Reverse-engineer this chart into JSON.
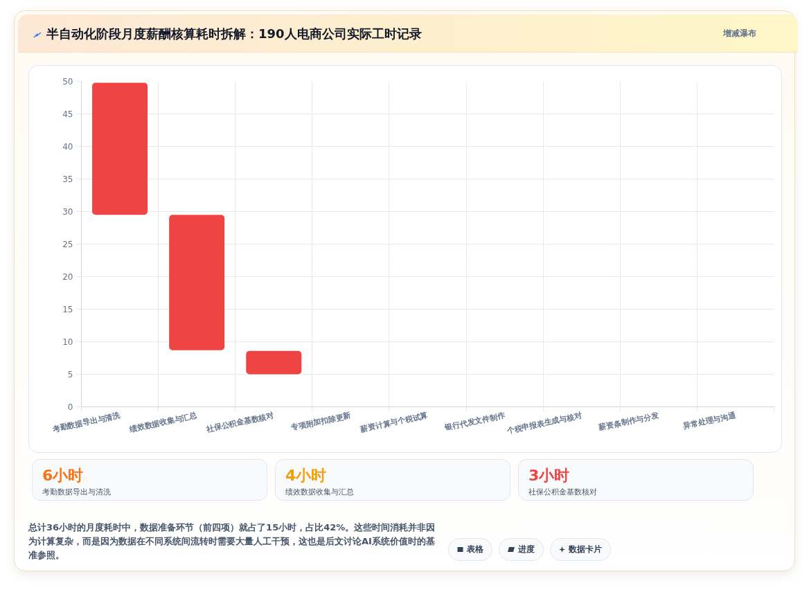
{
  "chart_data": [
    {
      "type": "bar",
      "title": "半自动化阶段月度薪酬核算耗时拆解：190人电商公司实际工时记录",
      "subtitle": "增减瀑布",
      "categories": [
        "考勤数据导出与清洗",
        "绩效数据收集与汇总",
        "社保公积金基数核对",
        "专项附加扣除更新",
        "薪资计算与个税试算",
        "银行代发文件制作",
        "个税申报表生成与核对",
        "薪资条制作与分发",
        "异常处理与沟通"
      ],
      "values": [
        20.3,
        20.8,
        3.6,
        null,
        null,
        null,
        null,
        null,
        null
      ],
      "base": [
        29.5,
        8.7,
        5.0,
        null,
        null,
        null,
        null,
        null,
        null
      ],
      "color": "#ef4444",
      "ylim": [
        0,
        50
      ],
      "yticks": [
        0,
        5,
        10,
        15,
        20,
        25,
        30,
        35,
        40,
        45,
        50
      ],
      "grid": true,
      "annotations": [
        "总计36小时的月度耗时中，数据准备环节（前四项）就占了15小时，占比42%。这些时间消耗并非因为计算复杂，而是因为数据在不同系统间流转时需要大量人工干预，这也是后文讨论AI系统价值时的基准参照。",
        "表格",
        "进度",
        "数据卡片"
      ]
    },
    {
      "type": "other",
      "annotations": [
        "6小时",
        "考勤数据导出与清洗",
        "4小时",
        "绩效数据收集与汇总",
        "3小时",
        "社保公积金基数核对"
      ],
      "colors": [
        "#f97316",
        "#f59e0b",
        "#ef4444"
      ]
    }
  ]
}
